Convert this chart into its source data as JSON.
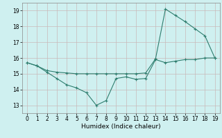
{
  "xlabel": "Humidex (Indice chaleur)",
  "x_ticks": [
    0,
    1,
    2,
    3,
    4,
    5,
    6,
    7,
    8,
    9,
    10,
    11,
    12,
    13,
    14,
    15,
    16,
    17,
    18,
    19
  ],
  "y_ticks": [
    13,
    14,
    15,
    16,
    17,
    18,
    19
  ],
  "xlim": [
    -0.5,
    19.5
  ],
  "ylim": [
    12.5,
    19.5
  ],
  "line1_x": [
    0,
    1,
    2,
    3,
    4,
    5,
    6,
    7,
    8,
    9,
    10,
    11,
    12,
    13,
    14,
    15,
    16,
    17,
    18,
    19
  ],
  "line1_y": [
    15.7,
    15.5,
    15.1,
    14.7,
    14.3,
    14.1,
    13.8,
    13.0,
    13.3,
    14.7,
    14.8,
    14.65,
    14.7,
    15.9,
    15.7,
    15.8,
    15.9,
    15.9,
    16.0,
    16.0
  ],
  "line2_x": [
    0,
    1,
    2,
    3,
    4,
    5,
    6,
    7,
    8,
    9,
    10,
    11,
    12,
    13,
    14,
    15,
    16,
    17,
    18,
    19
  ],
  "line2_y": [
    15.7,
    15.5,
    15.2,
    15.1,
    15.05,
    15.0,
    15.0,
    15.0,
    15.0,
    15.0,
    15.0,
    15.0,
    15.05,
    15.95,
    19.1,
    18.7,
    18.3,
    17.85,
    17.4,
    16.0
  ],
  "line_color": "#2e7d6e",
  "bg_color": "#cff0f0",
  "grid_color": "#c8b8b8"
}
